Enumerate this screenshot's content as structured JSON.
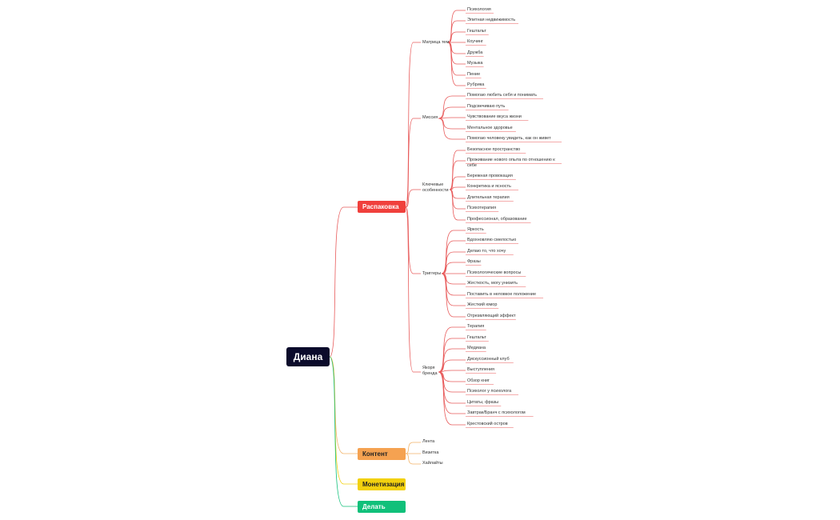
{
  "root": {
    "label": "Диана"
  },
  "colors": {
    "root": "#0b0b2b",
    "red": "#f0403c",
    "orange": "#f5a251",
    "yellow": "#f2d10e",
    "green": "#10c07a",
    "line_red": "#e85b5b",
    "line_orange": "#f2b36a"
  },
  "branches": {
    "raspakovka": "Распаковка",
    "content": "Контент",
    "monetization": "Монетизация",
    "delegate": "Делать"
  },
  "sub": {
    "matrix": "Матрица тем",
    "mission": "Миссия",
    "features_1": "Ключевые",
    "features_2": "особенности",
    "triggers": "Триггеры",
    "anchors_1": "Якоря",
    "anchors_2": "бренда"
  },
  "matrix_items": [
    "Психология",
    "Элитная недвижимость",
    "Гештальт",
    "Коучинг",
    "Дружба",
    "Музыка",
    "Пение",
    "Рубрика"
  ],
  "mission_items": [
    "Помогаю любить себя и понимать",
    "Подсвечиваю путь",
    "Чувствование вкуса жизни",
    "Ментальное здоровье",
    "Помогаю человеку увидеть, как он живет"
  ],
  "features_items": [
    "Безопасное пространство",
    "Проживание нового опыта по отношению к себе",
    "Бережная провокация",
    "Конкретика и ясность",
    "Длительная терапия",
    "Психотерапия",
    "Профессионал, образование"
  ],
  "triggers_items": [
    "Яркость",
    "Вдохновляю смелостью",
    "Делаю то, что хочу",
    "Фразы",
    "Психологические вопросы",
    "Жесткость, могу унизить",
    "Поставить в неловкое положение",
    "Жесткий юмор",
    "Отрезвляющий эффект"
  ],
  "anchors_items": [
    "Терапия",
    "Гештальт",
    "Медиана",
    "Дискуссионный клуб",
    "Выступления",
    "Обзор книг",
    "Психолог у психолога",
    "Цитаты, фразы",
    "Завтрак/Бранч с психологом",
    "Крестовский остров"
  ],
  "content_items": [
    "Лента",
    "Визитка",
    "Хайлайты"
  ]
}
